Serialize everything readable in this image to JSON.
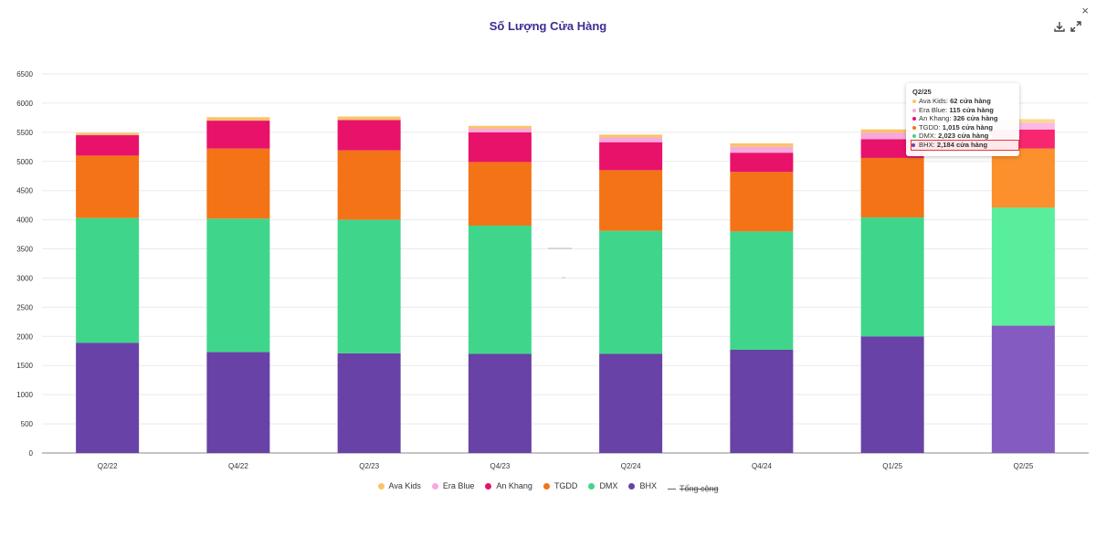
{
  "header": {
    "title": "Số Lượng Cửa Hàng",
    "close_label": "×"
  },
  "toolbar": {
    "download_icon": "download-icon",
    "expand_icon": "expand-icon"
  },
  "colors": {
    "Ava Kids": "#f9c46b",
    "Era Blue": "#f7a8de",
    "An Khang": "#e8126a",
    "TGDD": "#f47316",
    "DMX": "#3fd68b",
    "BHX": "#6842a6",
    "Tổng cộng": "#666666"
  },
  "chart_data": {
    "type": "bar",
    "stacked": true,
    "title": "Số Lượng Cửa Hàng",
    "categories": [
      "Q2/22",
      "Q4/22",
      "Q2/23",
      "Q4/23",
      "Q2/24",
      "Q4/24",
      "Q1/25",
      "Q2/25"
    ],
    "ylim": [
      0,
      6500
    ],
    "yticks": [
      0,
      500,
      1000,
      1500,
      2000,
      2500,
      3000,
      3500,
      4000,
      4500,
      5000,
      5500,
      6000,
      6500
    ],
    "grid": true,
    "legend_position": "bottom",
    "series": [
      {
        "name": "BHX",
        "values": [
          1890,
          1730,
          1710,
          1700,
          1700,
          1770,
          2000,
          2184
        ]
      },
      {
        "name": "DMX",
        "values": [
          2140,
          2290,
          2290,
          2200,
          2110,
          2030,
          2040,
          2023
        ]
      },
      {
        "name": "TGDD",
        "values": [
          1070,
          1200,
          1190,
          1090,
          1040,
          1020,
          1020,
          1015
        ]
      },
      {
        "name": "An Khang",
        "values": [
          350,
          480,
          520,
          510,
          480,
          330,
          320,
          326
        ]
      },
      {
        "name": "Era Blue",
        "values": [
          0,
          0,
          0,
          60,
          80,
          100,
          110,
          115
        ]
      },
      {
        "name": "Ava Kids",
        "values": [
          40,
          60,
          60,
          50,
          50,
          60,
          60,
          62
        ]
      }
    ],
    "total_series": {
      "name": "Tổng cộng",
      "hidden": true
    }
  },
  "tooltip": {
    "category": "Q2/25",
    "rows": [
      {
        "name": "Ava Kids",
        "value": "62 cửa hàng"
      },
      {
        "name": "Era Blue",
        "value": "115 cửa hàng"
      },
      {
        "name": "An Khang",
        "value": "326 cửa hàng"
      },
      {
        "name": "TGDD",
        "value": "1,015 cửa hàng"
      },
      {
        "name": "DMX",
        "value": "2,023 cửa hàng"
      },
      {
        "name": "BHX",
        "value": "2,184 cửa hàng"
      }
    ],
    "highlighted": "BHX"
  },
  "legend": {
    "items": [
      {
        "label": "Ava Kids",
        "icon": "dot"
      },
      {
        "label": "Era Blue",
        "icon": "dot"
      },
      {
        "label": "An Khang",
        "icon": "dot"
      },
      {
        "label": "TGDD",
        "icon": "dot"
      },
      {
        "label": "DMX",
        "icon": "dot"
      },
      {
        "label": "BHX",
        "icon": "dot"
      },
      {
        "label": "Tổng cộng",
        "icon": "line"
      }
    ]
  }
}
